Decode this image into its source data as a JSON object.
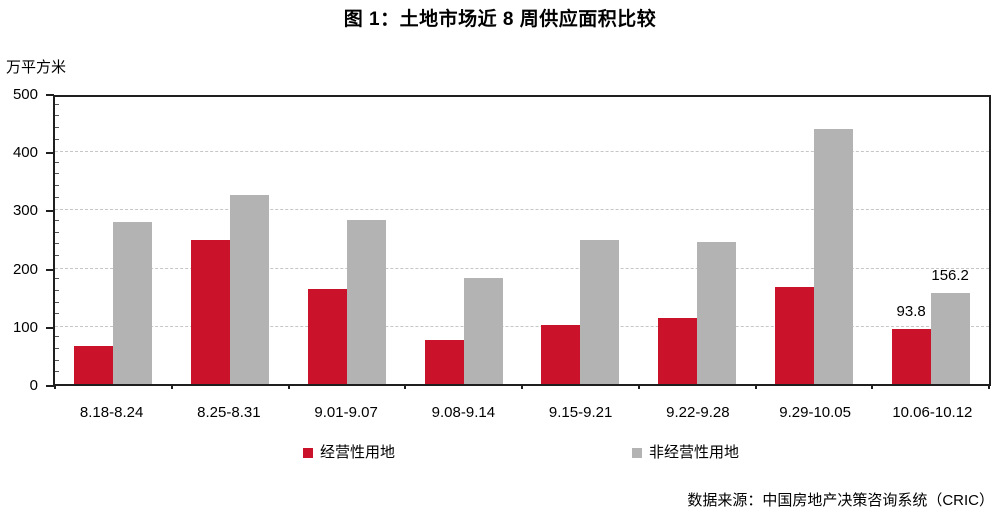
{
  "title": "图 1：土地市场近 8 周供应面积比较",
  "y_axis": {
    "unit": "万平方米",
    "ticks": [
      0,
      100,
      200,
      300,
      400,
      500
    ],
    "max": 500,
    "minor_step": 20
  },
  "source": "数据来源：中国房地产决策咨询系统（CRIC）",
  "colors": {
    "series_red": "#CB122B",
    "series_gray": "#B3B3B3",
    "gridline": "#C6C6C6",
    "axis": "#1F1F1F"
  },
  "chart_data": {
    "type": "bar",
    "title": "图 1：土地市场近 8 周供应面积比较",
    "ylabel": "万平方米",
    "xlabel": "",
    "ylim": [
      0,
      500
    ],
    "ytick_step": 100,
    "grid": "horizontal dashed at 100-400",
    "legend_position": "bottom",
    "categories": [
      "8.18-8.24",
      "8.25-8.31",
      "9.01-9.07",
      "9.08-9.14",
      "9.15-9.21",
      "9.22-9.28",
      "9.29-10.05",
      "10.06-10.12"
    ],
    "series": [
      {
        "name": "经营性用地",
        "color": "#CB122B",
        "values": [
          65,
          247,
          163,
          75,
          101,
          114,
          166,
          93.8
        ],
        "data_labels": [
          null,
          null,
          null,
          null,
          null,
          null,
          null,
          "93.8"
        ]
      },
      {
        "name": "非经营性用地",
        "color": "#B3B3B3",
        "values": [
          278,
          325,
          282,
          183,
          248,
          244,
          438,
          156.2
        ],
        "data_labels": [
          null,
          null,
          null,
          null,
          null,
          null,
          null,
          "156.2"
        ]
      }
    ]
  }
}
